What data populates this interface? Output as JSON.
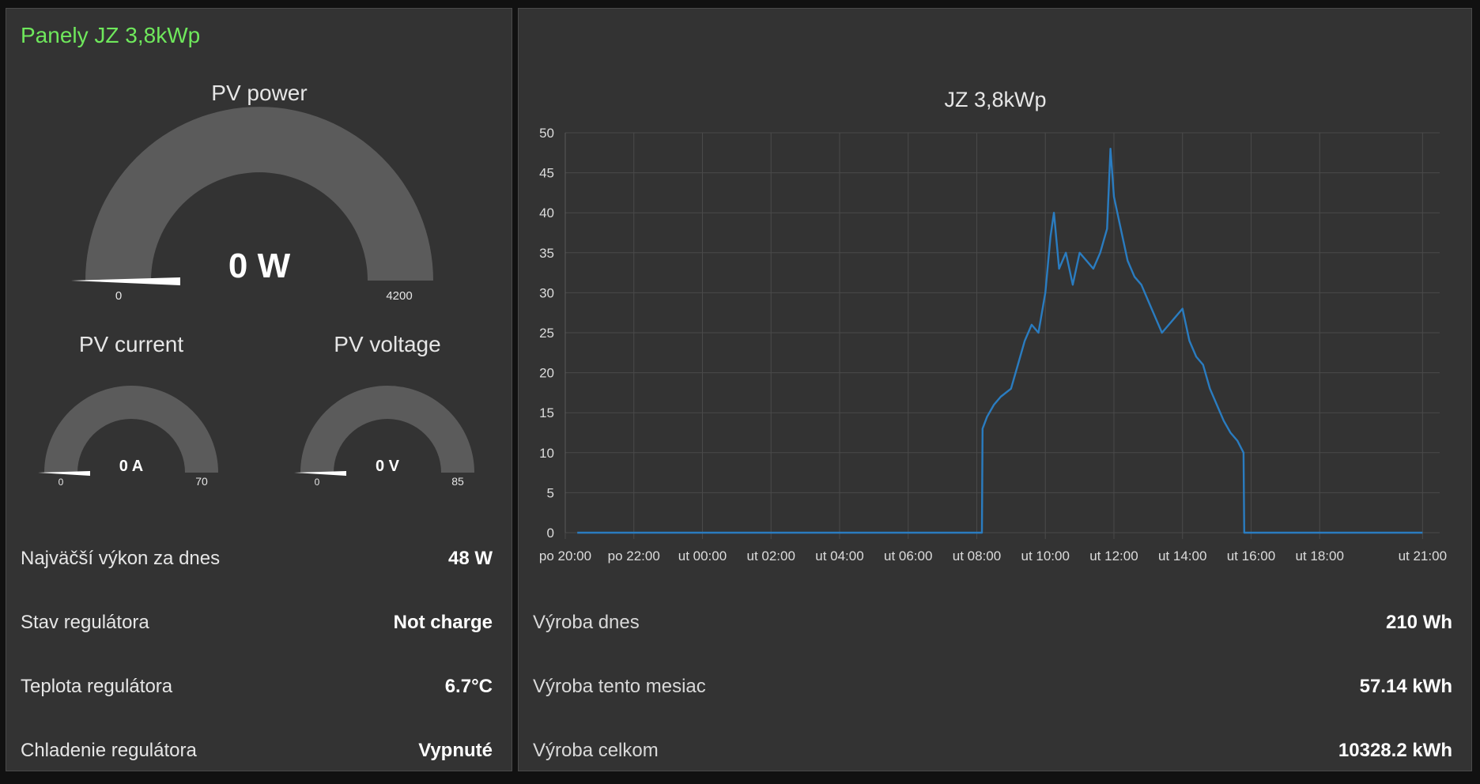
{
  "left_panel": {
    "title": "Panely JZ 3,8kWp",
    "gauges": {
      "power": {
        "title": "PV power",
        "value_text": "0 W",
        "value": 0,
        "min_label": "0",
        "max_label": "4200",
        "min": 0,
        "max": 4200
      },
      "current": {
        "title": "PV current",
        "value_text": "0 A",
        "value": 0,
        "min_label": "0",
        "max_label": "70",
        "min": 0,
        "max": 70
      },
      "voltage": {
        "title": "PV voltage",
        "value_text": "0 V",
        "value": 0,
        "min_label": "0",
        "max_label": "85",
        "min": 0,
        "max": 85
      }
    },
    "rows": [
      {
        "label": "Najväčší výkon za dnes",
        "value": "48 W"
      },
      {
        "label": "Stav regulátora",
        "value": "Not charge"
      },
      {
        "label": "Teplota regulátora",
        "value": "6.7°C"
      },
      {
        "label": "Chladenie regulátora",
        "value": "Vypnuté"
      }
    ]
  },
  "right_panel": {
    "rows": [
      {
        "label": "Výroba dnes",
        "value": "210 Wh"
      },
      {
        "label": "Výroba tento mesiac",
        "value": "57.14 kWh"
      },
      {
        "label": "Výroba celkom",
        "value": "10328.2 kWh"
      }
    ]
  },
  "colors": {
    "title_accent": "#6fe85c",
    "gauge_track": "#5b5b5b",
    "needle": "#ffffff",
    "series": "#2a7cc0"
  },
  "chart_data": {
    "type": "line",
    "title": "JZ 3,8kWp",
    "xlabel": "",
    "ylabel": "",
    "ylim": [
      0,
      50
    ],
    "yticks": [
      0,
      5,
      10,
      15,
      20,
      25,
      30,
      35,
      40,
      45,
      50
    ],
    "xlim_hours": [
      20,
      45.5
    ],
    "xticks": [
      {
        "label": "po 20:00",
        "hour": 20
      },
      {
        "label": "po 22:00",
        "hour": 22
      },
      {
        "label": "ut 00:00",
        "hour": 24
      },
      {
        "label": "ut 02:00",
        "hour": 26
      },
      {
        "label": "ut 04:00",
        "hour": 28
      },
      {
        "label": "ut 06:00",
        "hour": 30
      },
      {
        "label": "ut 08:00",
        "hour": 32
      },
      {
        "label": "ut 10:00",
        "hour": 34
      },
      {
        "label": "ut 12:00",
        "hour": 36
      },
      {
        "label": "ut 14:00",
        "hour": 38
      },
      {
        "label": "ut 16:00",
        "hour": 40
      },
      {
        "label": "ut 18:00",
        "hour": 42
      },
      {
        "label": "ut 21:00",
        "hour": 45
      }
    ],
    "grid": true,
    "series": [
      {
        "points": [
          [
            20.35,
            0
          ],
          [
            32.15,
            0
          ],
          [
            32.17,
            13
          ],
          [
            32.3,
            14.5
          ],
          [
            32.5,
            16
          ],
          [
            32.7,
            17
          ],
          [
            33.0,
            18
          ],
          [
            33.2,
            21
          ],
          [
            33.4,
            24
          ],
          [
            33.6,
            26
          ],
          [
            33.8,
            25
          ],
          [
            34.0,
            30
          ],
          [
            34.15,
            37
          ],
          [
            34.25,
            40
          ],
          [
            34.4,
            33
          ],
          [
            34.6,
            35
          ],
          [
            34.8,
            31
          ],
          [
            35.0,
            35
          ],
          [
            35.2,
            34
          ],
          [
            35.4,
            33
          ],
          [
            35.6,
            35
          ],
          [
            35.8,
            38
          ],
          [
            35.9,
            48
          ],
          [
            36.0,
            42
          ],
          [
            36.2,
            38
          ],
          [
            36.4,
            34
          ],
          [
            36.6,
            32
          ],
          [
            36.8,
            31
          ],
          [
            37.0,
            29
          ],
          [
            37.2,
            27
          ],
          [
            37.4,
            25
          ],
          [
            37.6,
            26
          ],
          [
            37.8,
            27
          ],
          [
            38.0,
            28
          ],
          [
            38.2,
            24
          ],
          [
            38.4,
            22
          ],
          [
            38.6,
            21
          ],
          [
            38.8,
            18
          ],
          [
            39.0,
            16
          ],
          [
            39.2,
            14
          ],
          [
            39.4,
            12.5
          ],
          [
            39.6,
            11.5
          ],
          [
            39.78,
            10
          ],
          [
            39.8,
            0
          ],
          [
            45.0,
            0
          ]
        ]
      }
    ]
  }
}
